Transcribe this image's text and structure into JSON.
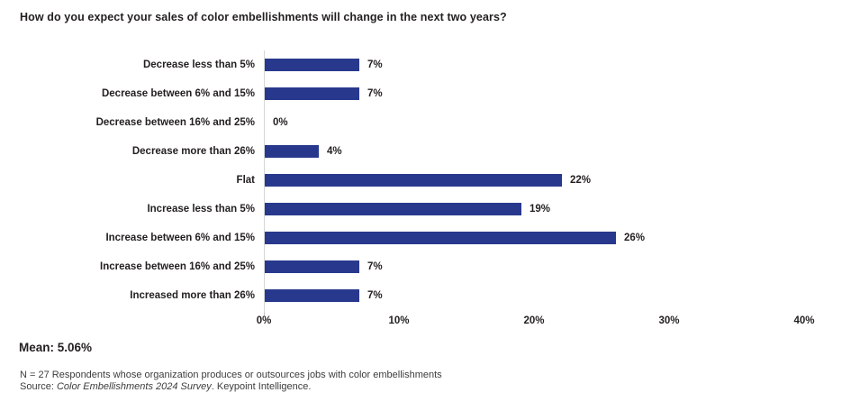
{
  "title": "How do you expect your sales of color embellishments will change in the next two years?",
  "chart_data": {
    "type": "bar",
    "orientation": "horizontal",
    "title": "How do you expect your sales of color embellishments will change in the next two years?",
    "categories": [
      "Decrease less than 5%",
      "Decrease between 6% and 15%",
      "Decrease between 16% and 25%",
      "Decrease more than 26%",
      "Flat",
      "Increase less than 5%",
      "Increase between 6% and 15%",
      "Increase between 16% and 25%",
      "Increased more than 26%"
    ],
    "values": [
      7,
      7,
      0,
      4,
      22,
      19,
      26,
      7,
      7
    ],
    "value_labels": [
      "7%",
      "7%",
      "0%",
      "4%",
      "22%",
      "19%",
      "26%",
      "7%",
      "7%"
    ],
    "xlabel": "",
    "ylabel": "",
    "xlim": [
      0,
      40
    ],
    "x_ticks": [
      {
        "label": "0%",
        "value": 0
      },
      {
        "label": "10%",
        "value": 10
      },
      {
        "label": "20%",
        "value": 20
      },
      {
        "label": "30%",
        "value": 30
      },
      {
        "label": "40%",
        "value": 40
      }
    ],
    "grid": false,
    "legend": false,
    "bar_color": "#28398d",
    "axis_line_color": "#d6d6d6"
  },
  "footer": {
    "mean_label": "Mean: 5.06%",
    "n_text": "N = 27 Respondents whose organization produces or outsources jobs with color embellishments",
    "source_prefix": "Source: ",
    "source_italic": "Color Embellishments 2024 Survey",
    "source_suffix": ". Keypoint Intelligence."
  }
}
